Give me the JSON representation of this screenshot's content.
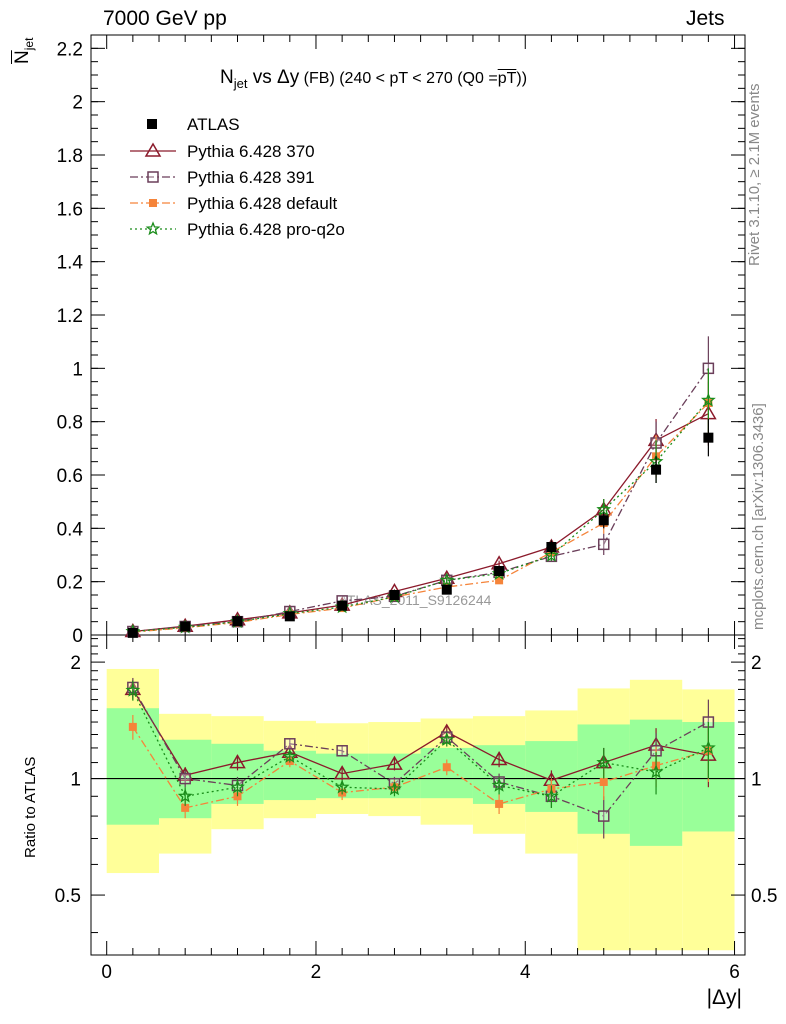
{
  "header": {
    "left": "7000 GeV pp",
    "right": "Jets"
  },
  "side_labels": {
    "rivet": "Rivet 3.1.10, ≥ 2.1M events",
    "mcplots": "mcplots.cern.ch [arXiv:1306.3436]"
  },
  "title": {
    "main": "N",
    "sub": "jet",
    "rest": " vs Δy",
    "tag": " (FB) (240 < pT < 270 (Q0 =",
    "ov": "pT",
    "end": "))"
  },
  "ylabel": {
    "ov": "N",
    "sub": "jet"
  },
  "ratio_label": "Ratio to ATLAS",
  "xlabel": "|Δy|",
  "watermark": "ATLAS_2011_S9126244",
  "colors": {
    "atlas": "#000000",
    "p370": "#8b1a2b",
    "p391": "#6b3f5a",
    "pdefault": "#f5843a",
    "pq2o": "#1a8c1a",
    "band_yellow": "#ffff99",
    "band_green": "#99ff99"
  },
  "chart_data": [
    {
      "type": "line",
      "xlabel": "|Δy|",
      "xlim": [
        -0.15,
        6.1
      ],
      "ylim": [
        0,
        2.25
      ],
      "yticks": [
        0,
        0.2,
        0.4,
        0.6,
        0.8,
        1,
        1.2,
        1.4,
        1.6,
        1.8,
        2,
        2.2
      ],
      "x": [
        0.25,
        0.75,
        1.25,
        1.75,
        2.25,
        2.75,
        3.25,
        3.75,
        4.25,
        4.75,
        5.25,
        5.75
      ],
      "legend": [
        "ATLAS",
        "Pythia 6.428 370",
        "Pythia 6.428 391",
        "Pythia 6.428 default",
        "Pythia 6.428 pro-q2o"
      ],
      "series": [
        {
          "name": "ATLAS",
          "key": "atlas",
          "marker": "square",
          "values": [
            0.008,
            0.032,
            0.052,
            0.07,
            0.11,
            0.15,
            0.17,
            0.24,
            0.33,
            0.43,
            0.62,
            0.74
          ],
          "err": [
            0.004,
            0.005,
            0.006,
            0.008,
            0.01,
            0.012,
            0.015,
            0.02,
            0.025,
            0.03,
            0.05,
            0.07
          ]
        },
        {
          "name": "Pythia 6.428 370",
          "key": "p370",
          "marker": "triangle",
          "dash": "",
          "values": [
            0.013,
            0.033,
            0.057,
            0.083,
            0.112,
            0.163,
            0.213,
            0.267,
            0.33,
            0.47,
            0.73,
            0.83
          ],
          "err": [
            0.002,
            0.003,
            0.004,
            0.005,
            0.006,
            0.008,
            0.01,
            0.012,
            0.02,
            0.04,
            0.08,
            0.12
          ]
        },
        {
          "name": "Pythia 6.428 391",
          "key": "p391",
          "marker": "opensquare",
          "dash": "8,3,2,3",
          "values": [
            0.013,
            0.032,
            0.05,
            0.088,
            0.128,
            0.145,
            0.205,
            0.235,
            0.295,
            0.34,
            0.72,
            1.0
          ],
          "err": [
            0.002,
            0.003,
            0.004,
            0.005,
            0.006,
            0.008,
            0.01,
            0.012,
            0.02,
            0.04,
            0.08,
            0.12
          ]
        },
        {
          "name": "Pythia 6.428 default",
          "key": "pdefault",
          "marker": "smallsquare",
          "dash": "8,3,2,3",
          "values": [
            0.011,
            0.027,
            0.047,
            0.077,
            0.101,
            0.143,
            0.18,
            0.205,
            0.31,
            0.42,
            0.67,
            0.87
          ],
          "err": [
            0.002,
            0.003,
            0.004,
            0.005,
            0.006,
            0.008,
            0.01,
            0.012,
            0.02,
            0.04,
            0.08,
            0.12
          ]
        },
        {
          "name": "Pythia 6.428 pro-q2o",
          "key": "pq2o",
          "marker": "star",
          "dash": "2,3",
          "values": [
            0.013,
            0.029,
            0.05,
            0.08,
            0.105,
            0.143,
            0.205,
            0.23,
            0.298,
            0.47,
            0.65,
            0.88
          ],
          "err": [
            0.002,
            0.003,
            0.004,
            0.005,
            0.006,
            0.008,
            0.01,
            0.012,
            0.02,
            0.04,
            0.08,
            0.12
          ]
        }
      ]
    },
    {
      "type": "line",
      "ylabel": "Ratio to ATLAS",
      "xticks": [
        0,
        2,
        4,
        6
      ],
      "yticks": [
        0.5,
        1,
        2
      ],
      "bin_edges": [
        0,
        0.5,
        1,
        1.5,
        2,
        2.5,
        3,
        3.5,
        4,
        4.5,
        5,
        5.5,
        6
      ],
      "band_yellow": [
        [
          0.57,
          1.92
        ],
        [
          0.64,
          1.47
        ],
        [
          0.74,
          1.45
        ],
        [
          0.79,
          1.41
        ],
        [
          0.81,
          1.39
        ],
        [
          0.8,
          1.4
        ],
        [
          0.76,
          1.43
        ],
        [
          0.72,
          1.45
        ],
        [
          0.64,
          1.5
        ],
        [
          0.36,
          1.71
        ],
        [
          0.3,
          1.8
        ],
        [
          0.3,
          1.7
        ]
      ],
      "band_green": [
        [
          0.76,
          1.52
        ],
        [
          0.79,
          1.26
        ],
        [
          0.86,
          1.23
        ],
        [
          0.88,
          1.18
        ],
        [
          0.89,
          1.16
        ],
        [
          0.89,
          1.16
        ],
        [
          0.89,
          1.2
        ],
        [
          0.86,
          1.22
        ],
        [
          0.82,
          1.25
        ],
        [
          0.72,
          1.38
        ],
        [
          0.67,
          1.42
        ],
        [
          0.73,
          1.4
        ]
      ],
      "series": [
        {
          "name": "Pythia 6.428 370",
          "key": "p370",
          "values": [
            1.7,
            1.02,
            1.1,
            1.17,
            1.03,
            1.09,
            1.32,
            1.12,
            0.99,
            1.1,
            1.22,
            1.15
          ],
          "err": [
            0.1,
            0.05,
            0.05,
            0.04,
            0.04,
            0.04,
            0.05,
            0.05,
            0.06,
            0.1,
            0.13,
            0.2
          ]
        },
        {
          "name": "Pythia 6.428 391",
          "key": "p391",
          "values": [
            1.72,
            1.0,
            0.96,
            1.23,
            1.18,
            0.97,
            1.28,
            0.98,
            0.9,
            0.8,
            1.18,
            1.4
          ],
          "err": [
            0.1,
            0.05,
            0.05,
            0.04,
            0.04,
            0.04,
            0.05,
            0.05,
            0.06,
            0.1,
            0.13,
            0.2
          ]
        },
        {
          "name": "Pythia 6.428 default",
          "key": "pdefault",
          "values": [
            1.36,
            0.84,
            0.9,
            1.11,
            0.92,
            0.95,
            1.07,
            0.86,
            0.94,
            0.98,
            1.08,
            1.18
          ],
          "err": [
            0.1,
            0.05,
            0.05,
            0.04,
            0.04,
            0.04,
            0.05,
            0.05,
            0.06,
            0.1,
            0.13,
            0.2
          ]
        },
        {
          "name": "Pythia 6.428 pro-q2o",
          "key": "pq2o",
          "values": [
            1.69,
            0.9,
            0.95,
            1.14,
            0.95,
            0.94,
            1.26,
            0.96,
            0.9,
            1.1,
            1.04,
            1.2
          ],
          "err": [
            0.1,
            0.05,
            0.05,
            0.04,
            0.04,
            0.04,
            0.05,
            0.05,
            0.06,
            0.1,
            0.13,
            0.2
          ]
        }
      ]
    }
  ]
}
